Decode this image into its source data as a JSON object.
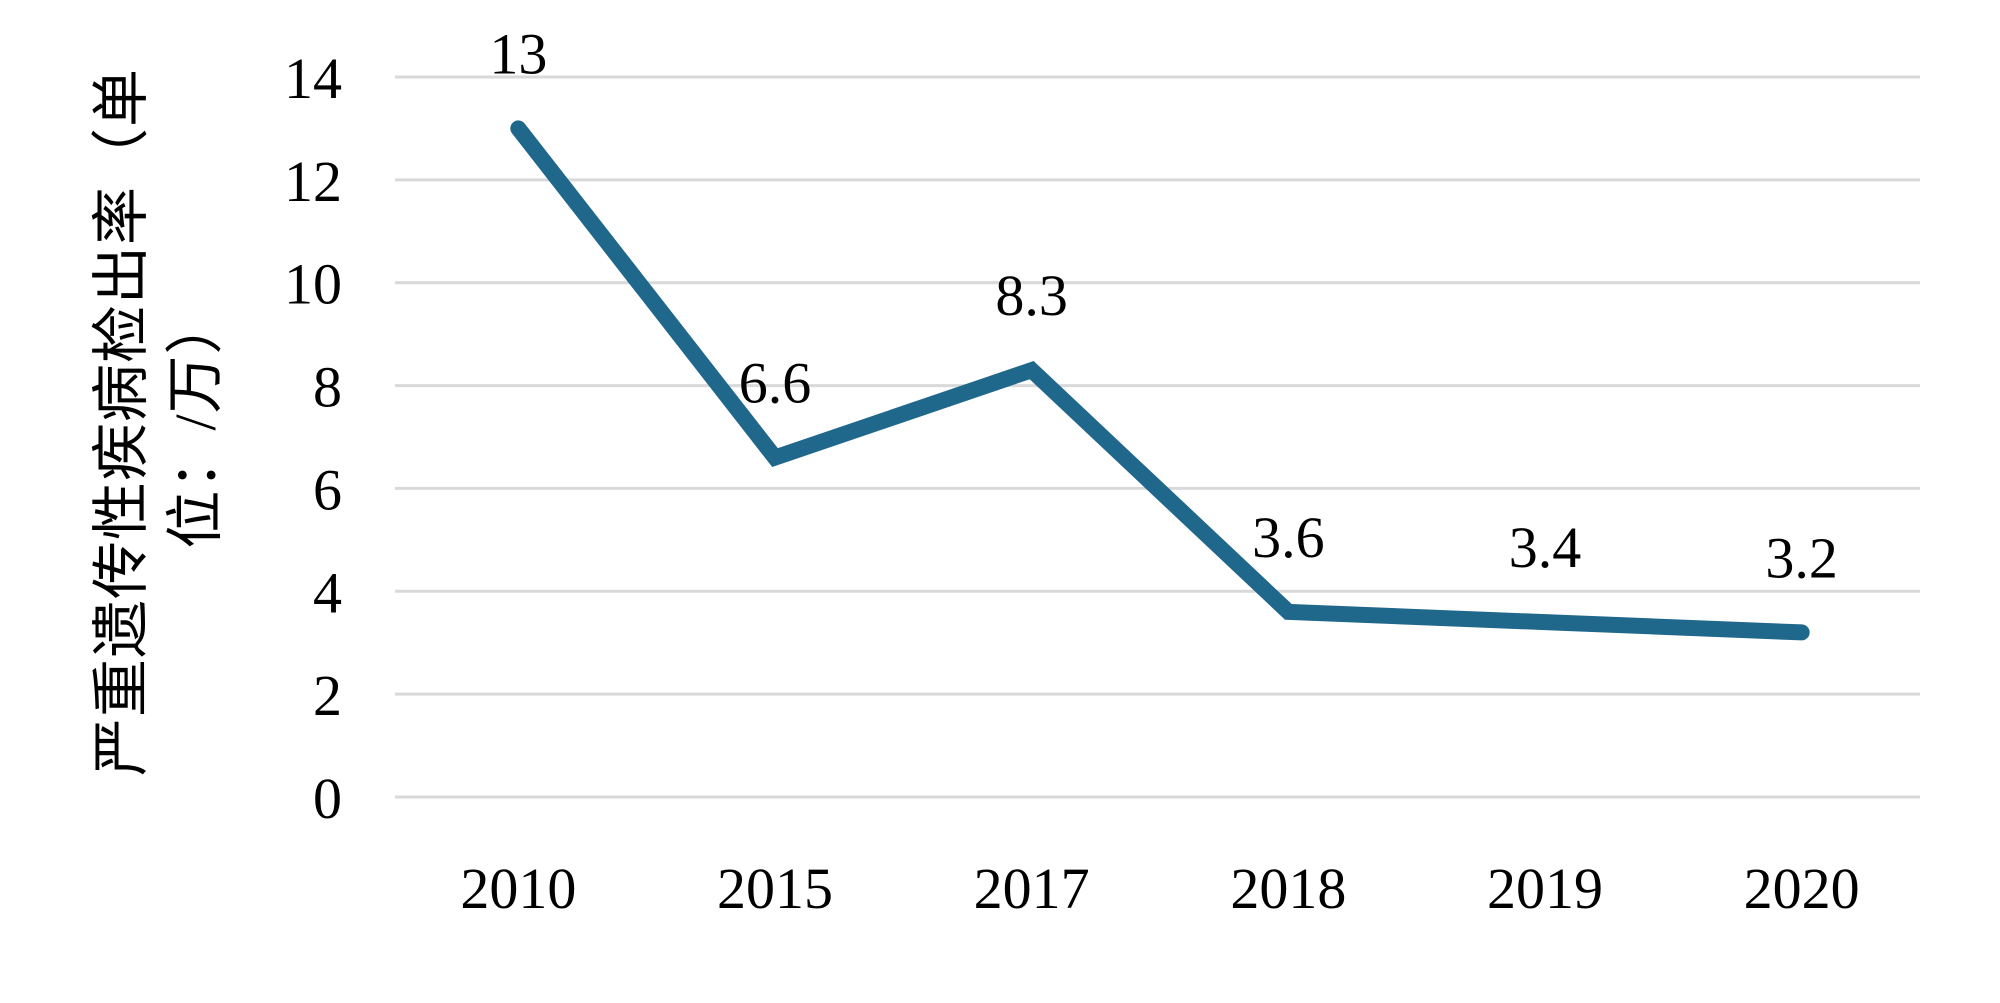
{
  "chart_data": {
    "type": "line",
    "title": "",
    "categories": [
      "2010",
      "2015",
      "2017",
      "2018",
      "2019",
      "2020"
    ],
    "values": [
      13,
      6.6,
      8.3,
      3.6,
      3.4,
      3.2
    ],
    "data_labels": [
      "13",
      "6.6",
      "8.3",
      "3.6",
      "3.4",
      "3.2"
    ],
    "ylabel": "严重遗传性疾病检出率（单位：/万）",
    "ylabel_wrapped": "严重遗传性疾病检出率（单\n位：/万）",
    "xlabel": "",
    "yticks": [
      0,
      2,
      4,
      6,
      8,
      10,
      12,
      14
    ],
    "ytick_labels": [
      "0",
      "2",
      "4",
      "6",
      "8",
      "10",
      "12",
      "14"
    ],
    "ylim": [
      0,
      14
    ],
    "grid": true,
    "legend": "none",
    "line_color": "#20678C",
    "gridline_color": "#D9D9D9",
    "text_color": "#000000",
    "background_color": "#FFFFFF"
  }
}
